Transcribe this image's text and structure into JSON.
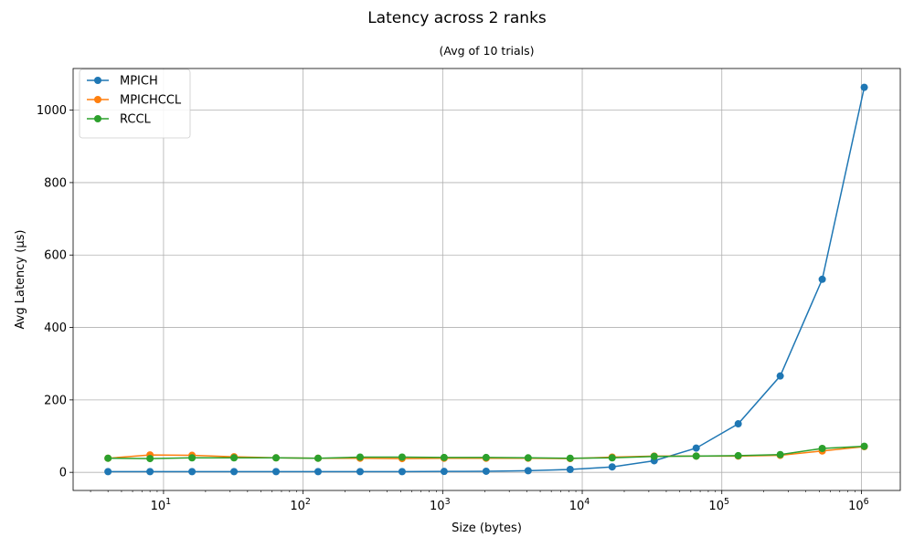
{
  "chart_data": {
    "type": "line",
    "title": "Latency across 2 ranks",
    "subtitle": "(Avg of 10 trials)",
    "xlabel": "Size (bytes)",
    "ylabel": "Avg Latency (µs)",
    "xscale": "log",
    "xlim": [
      2.25,
      1900000
    ],
    "ylim": [
      -50,
      1115
    ],
    "grid": true,
    "legend_position": "top-left",
    "x": [
      4,
      8,
      16,
      32,
      64,
      128,
      256,
      512,
      1024,
      2048,
      4096,
      8192,
      16384,
      32768,
      65536,
      131072,
      262144,
      524288,
      1048576
    ],
    "x_ticks": [
      {
        "value": 10,
        "label": "10",
        "exp": "1"
      },
      {
        "value": 100,
        "label": "10",
        "exp": "2"
      },
      {
        "value": 1000,
        "label": "10",
        "exp": "3"
      },
      {
        "value": 10000,
        "label": "10",
        "exp": "4"
      },
      {
        "value": 100000,
        "label": "10",
        "exp": "5"
      },
      {
        "value": 1000000,
        "label": "10",
        "exp": "6"
      }
    ],
    "y_ticks": [
      0,
      200,
      400,
      600,
      800,
      1000
    ],
    "series": [
      {
        "name": "MPICH",
        "color": "#1f77b4",
        "values": [
          2,
          2,
          2,
          2,
          2,
          2,
          2,
          2,
          2.5,
          3,
          4.5,
          8,
          15,
          32,
          67,
          134,
          266,
          533,
          1063
        ]
      },
      {
        "name": "MPICHCCL",
        "color": "#ff7f0e",
        "values": [
          39,
          48,
          47,
          43,
          40,
          39,
          39,
          38,
          39,
          39,
          39,
          38,
          42,
          45,
          45,
          45,
          47,
          59,
          71
        ]
      },
      {
        "name": "RCCL",
        "color": "#2ca02c",
        "values": [
          39,
          38,
          40,
          40,
          40,
          39,
          42,
          42,
          41,
          41,
          40,
          39,
          40,
          44,
          45,
          46,
          49,
          66,
          72
        ]
      }
    ]
  }
}
